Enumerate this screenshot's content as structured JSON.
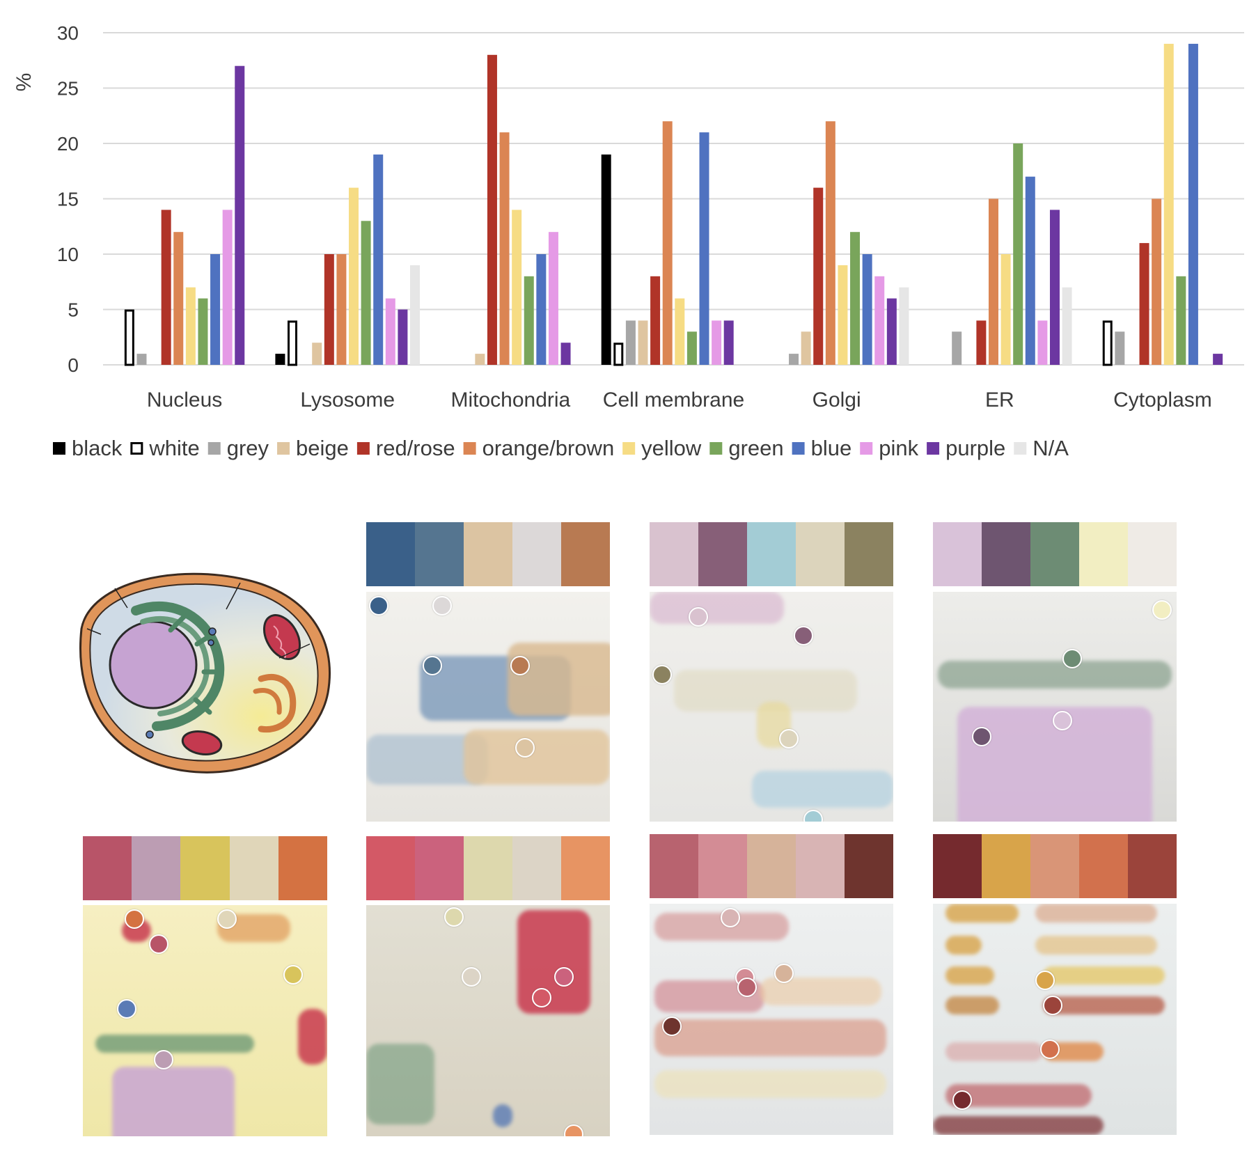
{
  "chart_data": {
    "type": "bar",
    "title": "",
    "xlabel": "",
    "ylabel": "%",
    "ylim": [
      0,
      30
    ],
    "yticks": [
      0,
      5,
      10,
      15,
      20,
      25,
      30
    ],
    "grid": true,
    "legend_position": "bottom",
    "categories": [
      "Nucleus",
      "Lysosome",
      "Mitochondria",
      "Cell membrane",
      "Golgi",
      "ER",
      "Cytoplasm"
    ],
    "series": [
      {
        "name": "black",
        "color": "#000000",
        "values": [
          0,
          1,
          0,
          19,
          0,
          0,
          0
        ]
      },
      {
        "name": "white",
        "color": "#ffffff",
        "outline": "#000000",
        "values": [
          5,
          4,
          0,
          2,
          0,
          0,
          4
        ]
      },
      {
        "name": "grey",
        "color": "#a6a6a6",
        "values": [
          1,
          0,
          0,
          4,
          1,
          3,
          3
        ]
      },
      {
        "name": "beige",
        "color": "#dfc5a0",
        "values": [
          0,
          2,
          1,
          4,
          3,
          0,
          0
        ]
      },
      {
        "name": "red/rose",
        "color": "#b03428",
        "values": [
          14,
          10,
          28,
          8,
          16,
          4,
          11
        ]
      },
      {
        "name": "orange/brown",
        "color": "#db8553",
        "values": [
          12,
          10,
          21,
          22,
          22,
          15,
          15
        ]
      },
      {
        "name": "yellow",
        "color": "#f6dc84",
        "values": [
          7,
          16,
          14,
          6,
          9,
          10,
          29
        ]
      },
      {
        "name": "green",
        "color": "#79a55b",
        "values": [
          6,
          13,
          8,
          3,
          12,
          20,
          8
        ]
      },
      {
        "name": "blue",
        "color": "#4f72c0",
        "values": [
          10,
          19,
          10,
          21,
          10,
          17,
          29
        ]
      },
      {
        "name": "pink",
        "color": "#e59ae6",
        "values": [
          14,
          6,
          12,
          4,
          8,
          4,
          0
        ]
      },
      {
        "name": "purple",
        "color": "#6c37a1",
        "values": [
          27,
          5,
          2,
          4,
          6,
          14,
          1
        ]
      },
      {
        "name": "N/A",
        "color": "#e6e6e6",
        "values": [
          0,
          9,
          0,
          0,
          7,
          7,
          0
        ]
      }
    ]
  },
  "panels": {
    "cell_illustration": {
      "membrane": "#d98a4b",
      "cytoplasm": "#d9e2ea",
      "cytoplasm_warm": "#f3eaa1",
      "nucleus": "#c9a6d3",
      "er": "#5d8f6e",
      "mito": "#c93a4f"
    },
    "row1": [
      {
        "palette": [
          "#3a6089",
          "#557590",
          "#dcc4a2",
          "#dcd8d8",
          "#b87a52"
        ],
        "paper": "#ecebe6",
        "dots": [
          "#3a6089",
          "#dcd8d8",
          "#557590",
          "#b87a52",
          "#dcc4a2"
        ]
      },
      {
        "palette": [
          "#d9c2cf",
          "#875f78",
          "#a3ccd5",
          "#dcd4bc",
          "#8b8260"
        ],
        "paper": "#eeeeec",
        "dots": [
          "#d9c2cf",
          "#875f78",
          "#8b8260",
          "#dcd4bc",
          "#a3ccd5"
        ]
      },
      {
        "palette": [
          "#d9c2d9",
          "#6e5570",
          "#6d8c74",
          "#f2eec2",
          "#efebe6"
        ],
        "paper": "#e5e4e0",
        "dots": [
          "#f2eec2",
          "#6d8c74",
          "#d9c2d9",
          "#6e5570"
        ]
      }
    ],
    "row2": [
      {
        "palette": [
          "#b85468",
          "#bc9db3",
          "#d8c45c",
          "#e0d6b9",
          "#d47242"
        ],
        "paper": "#f2eab0",
        "dots": [
          "#d47242",
          "#e0d6b9",
          "#b85468",
          "#d8c45c",
          "#5a7bb5",
          "#bc9db3"
        ]
      },
      {
        "palette": [
          "#d35966",
          "#cb627d",
          "#ddd8ad",
          "#dcd4c6",
          "#e79463"
        ],
        "paper": "#e3ddd0",
        "dots": [
          "#ddd8ad",
          "#dcd4c6",
          "#cb627d",
          "#d35966",
          "#e79463"
        ]
      },
      {
        "palette": [
          "#b8636f",
          "#d38c95",
          "#d6b39a",
          "#d8b4b4",
          "#6e342e"
        ],
        "paper": "#e8eaeb",
        "dots": [
          "#d8b4b4",
          "#d6b39a",
          "#d38c95",
          "#b8636f",
          "#6e342e"
        ]
      },
      {
        "palette": [
          "#752a2e",
          "#d8a44a",
          "#d99577",
          "#d2714d",
          "#9b443b"
        ],
        "paper": "#e5e8e8",
        "dots": [
          "#d8a44a",
          "#9b443b",
          "#d2714d",
          "#752a2e"
        ]
      }
    ]
  }
}
